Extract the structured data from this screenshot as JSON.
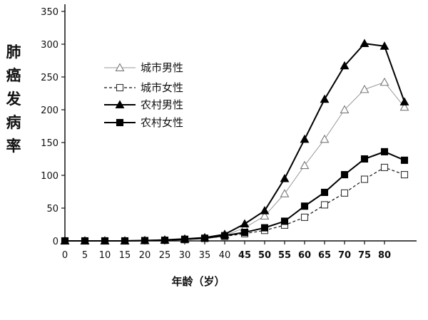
{
  "chart_data": {
    "type": "line",
    "ylabel": "肺癌发病率",
    "xlabel": "年龄（岁）",
    "x": [
      0,
      5,
      10,
      15,
      20,
      25,
      30,
      35,
      40,
      45,
      50,
      55,
      60,
      65,
      70,
      75,
      80,
      85
    ],
    "xticks": [
      "0",
      "5",
      "10",
      "15",
      "20",
      "25",
      "30",
      "35",
      "40",
      "45",
      "50",
      "55",
      "60",
      "65",
      "70",
      "75",
      "80"
    ],
    "yticks": [
      0,
      50,
      100,
      150,
      200,
      250,
      300,
      350
    ],
    "ylim": [
      0,
      350
    ],
    "xlim": [
      0,
      85
    ],
    "grid": false,
    "legend_position": "upper-left",
    "series": [
      {
        "name": "城市男性",
        "color": "#9a9a9a",
        "dash": "solid",
        "marker": "triangle-open",
        "values": [
          0,
          0,
          0,
          0,
          0.5,
          1,
          2,
          4,
          8,
          20,
          38,
          72,
          115,
          155,
          200,
          231,
          242,
          204
        ]
      },
      {
        "name": "城市女性",
        "color": "#111111",
        "dash": "dashed",
        "marker": "square-open",
        "values": [
          0,
          0,
          0,
          0,
          0.5,
          1,
          2,
          4,
          7,
          11,
          16,
          24,
          36,
          55,
          73,
          94,
          112,
          101
        ]
      },
      {
        "name": "农村男性",
        "color": "#000000",
        "dash": "solid",
        "marker": "triangle-filled",
        "values": [
          0,
          0,
          0,
          0,
          0.5,
          1.5,
          3,
          5,
          10,
          26,
          46,
          95,
          155,
          216,
          267,
          301,
          297,
          212
        ]
      },
      {
        "name": "农村女性",
        "color": "#000000",
        "dash": "solid",
        "marker": "square-filled",
        "values": [
          0,
          0,
          0,
          0,
          0.5,
          1,
          2.5,
          4,
          8,
          13,
          20,
          30,
          53,
          74,
          101,
          125,
          136,
          123
        ]
      }
    ]
  }
}
